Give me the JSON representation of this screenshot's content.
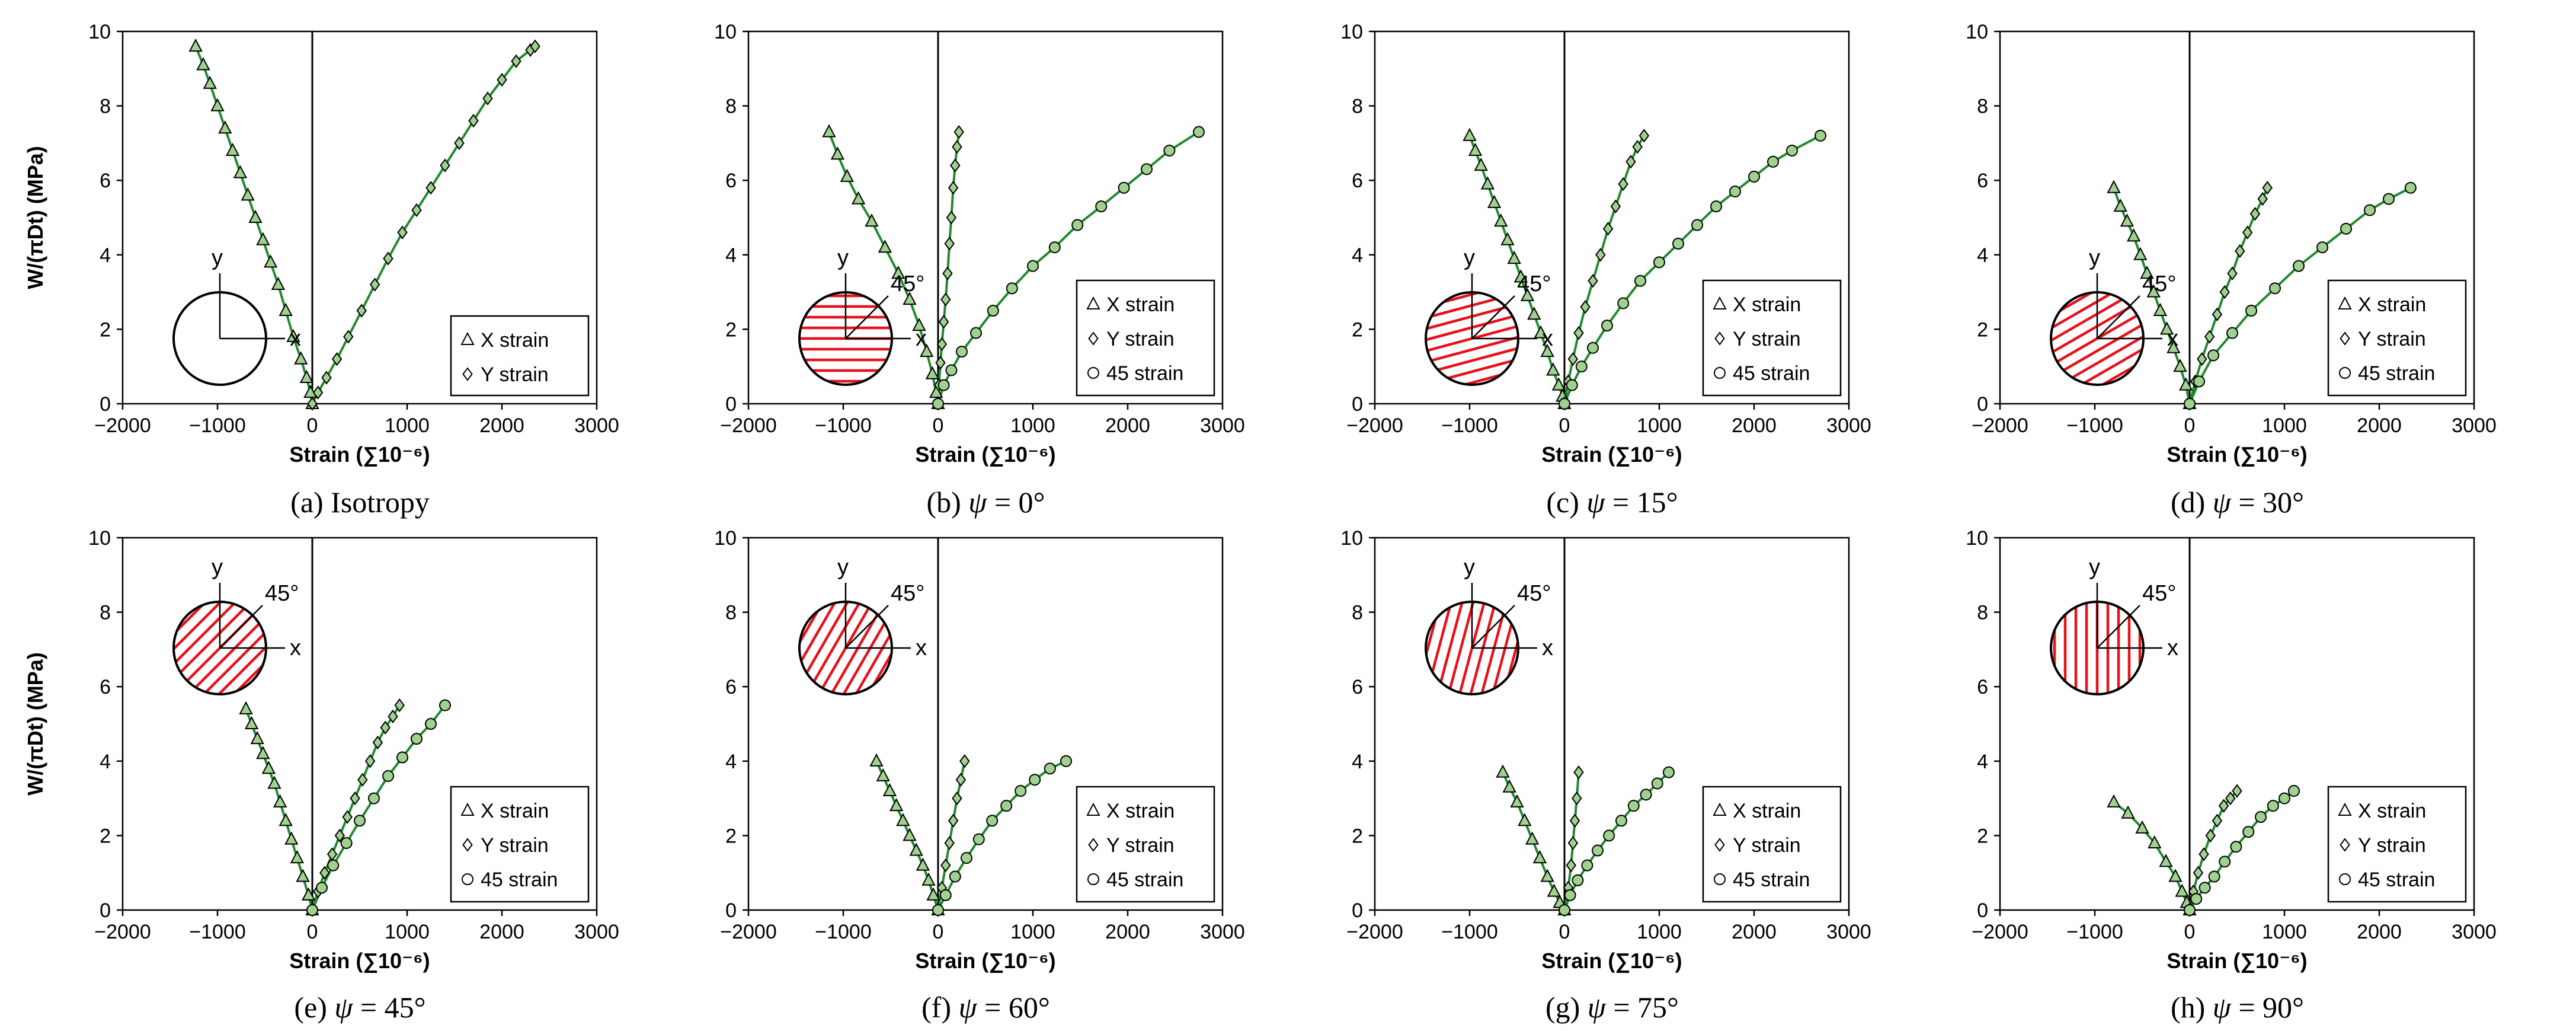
{
  "figure": {
    "y_axis_title": "W/(πDt) (MPa)",
    "x_axis_title": "Strain (∑10⁻⁶)",
    "x_ticks": [
      -2000,
      -1000,
      0,
      1000,
      2000,
      3000
    ],
    "y_ticks": [
      0,
      2,
      4,
      6,
      8,
      10
    ],
    "diagram_labels": {
      "x": "x",
      "y": "y",
      "angle": "45°"
    },
    "legend_labels": {
      "x": "X strain",
      "y": "Y strain",
      "d": "45 strain"
    },
    "colors": {
      "fit_line": "#1f8a2e",
      "marker_fill": "#9fd18f",
      "hatch": "#e8101a",
      "axis": "#000000"
    }
  },
  "chart_data": [
    {
      "type": "scatter",
      "id": "a",
      "caption_prefix": "(a) Isotropy",
      "psi": null,
      "psi_label": "",
      "psi_value": "",
      "xlim": [
        -2000,
        3000
      ],
      "ylim": [
        0,
        10
      ],
      "xlabel": "Strain (∑10⁻⁶)",
      "ylabel": "W/(πDt) (MPa)",
      "hatch_angle": null,
      "legend_entries": [
        "X strain",
        "Y strain"
      ],
      "series": [
        {
          "name": "X strain",
          "marker": "triangle",
          "x": [
            -1230,
            -1150,
            -1080,
            -1000,
            -920,
            -840,
            -760,
            -680,
            -600,
            -520,
            -440,
            -360,
            -280,
            -200,
            -120,
            -60,
            -20,
            0
          ],
          "y": [
            9.6,
            9.1,
            8.6,
            8.0,
            7.4,
            6.8,
            6.2,
            5.6,
            5.0,
            4.4,
            3.8,
            3.2,
            2.5,
            1.8,
            1.2,
            0.7,
            0.3,
            0
          ]
        },
        {
          "name": "Y strain",
          "marker": "diamond",
          "x": [
            0,
            60,
            150,
            260,
            380,
            520,
            660,
            800,
            950,
            1100,
            1250,
            1400,
            1550,
            1700,
            1850,
            2000,
            2150,
            2300,
            2350
          ],
          "y": [
            0,
            0.3,
            0.7,
            1.2,
            1.8,
            2.5,
            3.2,
            3.9,
            4.6,
            5.2,
            5.8,
            6.4,
            7.0,
            7.6,
            8.2,
            8.7,
            9.2,
            9.5,
            9.6
          ]
        }
      ]
    },
    {
      "type": "scatter",
      "id": "b",
      "caption_prefix": "(b) ",
      "psi": 0,
      "psi_label": "ψ",
      "psi_value": " = 0°",
      "xlim": [
        -2000,
        3000
      ],
      "ylim": [
        0,
        10
      ],
      "xlabel": "Strain (∑10⁻⁶)",
      "ylabel": "W/(πDt) (MPa)",
      "hatch_angle": 0,
      "legend_entries": [
        "X strain",
        "Y strain",
        "45 strain"
      ],
      "series": [
        {
          "name": "X strain",
          "marker": "triangle",
          "x": [
            -1150,
            -1060,
            -960,
            -840,
            -700,
            -560,
            -420,
            -300,
            -200,
            -120,
            -60,
            -20,
            0
          ],
          "y": [
            7.3,
            6.7,
            6.1,
            5.5,
            4.9,
            4.2,
            3.5,
            2.8,
            2.1,
            1.4,
            0.8,
            0.3,
            0
          ]
        },
        {
          "name": "Y strain",
          "marker": "diamond",
          "x": [
            0,
            10,
            25,
            40,
            60,
            80,
            100,
            120,
            140,
            160,
            180,
            200,
            220
          ],
          "y": [
            0,
            0.5,
            1.1,
            1.6,
            2.2,
            2.8,
            3.5,
            4.3,
            5.0,
            5.8,
            6.4,
            6.9,
            7.3
          ]
        },
        {
          "name": "45 strain",
          "marker": "circle",
          "x": [
            0,
            60,
            140,
            250,
            400,
            580,
            780,
            1000,
            1230,
            1470,
            1720,
            1960,
            2200,
            2440,
            2750
          ],
          "y": [
            0,
            0.5,
            0.9,
            1.4,
            1.9,
            2.5,
            3.1,
            3.7,
            4.2,
            4.8,
            5.3,
            5.8,
            6.3,
            6.8,
            7.3
          ]
        }
      ]
    },
    {
      "type": "scatter",
      "id": "c",
      "caption_prefix": "(c) ",
      "psi": 15,
      "psi_label": "ψ",
      "psi_value": " = 15°",
      "xlim": [
        -2000,
        3000
      ],
      "ylim": [
        0,
        10
      ],
      "xlabel": "Strain (∑10⁻⁶)",
      "ylabel": "W/(πDt) (MPa)",
      "hatch_angle": 15,
      "legend_entries": [
        "X strain",
        "Y strain",
        "45 strain"
      ],
      "series": [
        {
          "name": "X strain",
          "marker": "triangle",
          "x": [
            -1000,
            -940,
            -880,
            -810,
            -740,
            -670,
            -600,
            -530,
            -460,
            -390,
            -320,
            -250,
            -180,
            -120,
            -60,
            -20,
            0
          ],
          "y": [
            7.2,
            6.8,
            6.4,
            5.9,
            5.4,
            4.9,
            4.4,
            3.9,
            3.4,
            2.9,
            2.4,
            1.9,
            1.4,
            0.9,
            0.5,
            0.2,
            0
          ]
        },
        {
          "name": "Y strain",
          "marker": "diamond",
          "x": [
            0,
            40,
            90,
            150,
            220,
            300,
            380,
            460,
            540,
            620,
            700,
            770,
            840
          ],
          "y": [
            0,
            0.6,
            1.2,
            1.9,
            2.6,
            3.3,
            4.0,
            4.7,
            5.3,
            5.9,
            6.5,
            6.9,
            7.2
          ]
        },
        {
          "name": "45 strain",
          "marker": "circle",
          "x": [
            0,
            80,
            180,
            300,
            450,
            620,
            800,
            1000,
            1200,
            1400,
            1600,
            1800,
            2000,
            2200,
            2400,
            2700
          ],
          "y": [
            0,
            0.5,
            1.0,
            1.5,
            2.1,
            2.7,
            3.3,
            3.8,
            4.3,
            4.8,
            5.3,
            5.7,
            6.1,
            6.5,
            6.8,
            7.2
          ]
        }
      ]
    },
    {
      "type": "scatter",
      "id": "d",
      "caption_prefix": "(d) ",
      "psi": 30,
      "psi_label": "ψ",
      "psi_value": " = 30°",
      "xlim": [
        -2000,
        3000
      ],
      "ylim": [
        0,
        10
      ],
      "xlabel": "Strain (∑10⁻⁶)",
      "ylabel": "W/(πDt) (MPa)",
      "hatch_angle": 30,
      "legend_entries": [
        "X strain",
        "Y strain",
        "45 strain"
      ],
      "series": [
        {
          "name": "X strain",
          "marker": "triangle",
          "x": [
            -800,
            -730,
            -660,
            -590,
            -520,
            -450,
            -380,
            -310,
            -240,
            -170,
            -100,
            -40,
            0
          ],
          "y": [
            5.8,
            5.3,
            4.9,
            4.5,
            4.0,
            3.5,
            3.0,
            2.5,
            2.0,
            1.5,
            1.0,
            0.5,
            0
          ]
        },
        {
          "name": "Y strain",
          "marker": "diamond",
          "x": [
            0,
            60,
            130,
            210,
            290,
            370,
            450,
            530,
            610,
            690,
            770,
            820
          ],
          "y": [
            0,
            0.6,
            1.2,
            1.8,
            2.4,
            3.0,
            3.5,
            4.1,
            4.6,
            5.1,
            5.5,
            5.8
          ]
        },
        {
          "name": "45 strain",
          "marker": "circle",
          "x": [
            0,
            100,
            250,
            450,
            650,
            900,
            1150,
            1400,
            1650,
            1900,
            2100,
            2330
          ],
          "y": [
            0,
            0.6,
            1.3,
            1.9,
            2.5,
            3.1,
            3.7,
            4.2,
            4.7,
            5.2,
            5.5,
            5.8
          ]
        }
      ]
    },
    {
      "type": "scatter",
      "id": "e",
      "caption_prefix": "(e) ",
      "psi": 45,
      "psi_label": "ψ",
      "psi_value": " = 45°",
      "xlim": [
        -2000,
        3000
      ],
      "ylim": [
        0,
        10
      ],
      "xlabel": "Strain (∑10⁻⁶)",
      "ylabel": "W/(πDt) (MPa)",
      "hatch_angle": 45,
      "legend_entries": [
        "X strain",
        "Y strain",
        "45 strain"
      ],
      "series": [
        {
          "name": "X strain",
          "marker": "triangle",
          "x": [
            -700,
            -640,
            -580,
            -520,
            -460,
            -400,
            -340,
            -280,
            -220,
            -160,
            -100,
            -40,
            0
          ],
          "y": [
            5.4,
            5.0,
            4.6,
            4.2,
            3.8,
            3.4,
            2.9,
            2.4,
            1.9,
            1.4,
            0.9,
            0.4,
            0
          ]
        },
        {
          "name": "Y strain",
          "marker": "diamond",
          "x": [
            0,
            60,
            130,
            210,
            290,
            370,
            450,
            530,
            610,
            690,
            770,
            850,
            920
          ],
          "y": [
            0,
            0.5,
            1.0,
            1.5,
            2.0,
            2.5,
            3.0,
            3.5,
            4.0,
            4.5,
            4.9,
            5.2,
            5.5
          ]
        },
        {
          "name": "45 strain",
          "marker": "circle",
          "x": [
            0,
            100,
            220,
            360,
            500,
            650,
            800,
            950,
            1100,
            1250,
            1400
          ],
          "y": [
            0,
            0.6,
            1.2,
            1.8,
            2.4,
            3.0,
            3.6,
            4.1,
            4.6,
            5.0,
            5.5
          ]
        }
      ]
    },
    {
      "type": "scatter",
      "id": "f",
      "caption_prefix": "(f) ",
      "psi": 60,
      "psi_label": "ψ",
      "psi_value": " = 60°",
      "xlim": [
        -2000,
        3000
      ],
      "ylim": [
        0,
        10
      ],
      "xlabel": "Strain (∑10⁻⁶)",
      "ylabel": "W/(πDt) (MPa)",
      "hatch_angle": 60,
      "legend_entries": [
        "X strain",
        "Y strain",
        "45 strain"
      ],
      "series": [
        {
          "name": "X strain",
          "marker": "triangle",
          "x": [
            -650,
            -580,
            -510,
            -440,
            -370,
            -300,
            -230,
            -160,
            -100,
            -50,
            0
          ],
          "y": [
            4.0,
            3.6,
            3.2,
            2.8,
            2.4,
            2.0,
            1.6,
            1.2,
            0.8,
            0.4,
            0
          ]
        },
        {
          "name": "Y strain",
          "marker": "diamond",
          "x": [
            0,
            40,
            80,
            120,
            160,
            200,
            240,
            280
          ],
          "y": [
            0,
            0.6,
            1.2,
            1.8,
            2.4,
            3.0,
            3.5,
            4.0
          ]
        },
        {
          "name": "45 strain",
          "marker": "circle",
          "x": [
            0,
            80,
            180,
            300,
            430,
            570,
            720,
            870,
            1020,
            1180,
            1350
          ],
          "y": [
            0,
            0.4,
            0.9,
            1.4,
            1.9,
            2.4,
            2.8,
            3.2,
            3.5,
            3.8,
            4.0
          ]
        }
      ]
    },
    {
      "type": "scatter",
      "id": "g",
      "caption_prefix": "(g) ",
      "psi": 75,
      "psi_label": "ψ",
      "psi_value": " = 75°",
      "xlim": [
        -2000,
        3000
      ],
      "ylim": [
        0,
        10
      ],
      "xlabel": "Strain (∑10⁻⁶)",
      "ylabel": "W/(πDt) (MPa)",
      "hatch_angle": 75,
      "legend_entries": [
        "X strain",
        "Y strain",
        "45 strain"
      ],
      "series": [
        {
          "name": "X strain",
          "marker": "triangle",
          "x": [
            -650,
            -580,
            -500,
            -420,
            -340,
            -260,
            -180,
            -110,
            -50,
            0
          ],
          "y": [
            3.7,
            3.3,
            2.9,
            2.4,
            1.9,
            1.4,
            0.9,
            0.5,
            0.2,
            0
          ]
        },
        {
          "name": "Y strain",
          "marker": "diamond",
          "x": [
            0,
            40,
            70,
            90,
            110,
            130,
            150
          ],
          "y": [
            0,
            0.6,
            1.2,
            1.8,
            2.4,
            3.0,
            3.7
          ]
        },
        {
          "name": "45 strain",
          "marker": "circle",
          "x": [
            0,
            60,
            140,
            240,
            350,
            470,
            600,
            730,
            860,
            980,
            1100
          ],
          "y": [
            0,
            0.4,
            0.8,
            1.2,
            1.6,
            2.0,
            2.4,
            2.8,
            3.1,
            3.4,
            3.7
          ]
        }
      ]
    },
    {
      "type": "scatter",
      "id": "h",
      "caption_prefix": "(h) ",
      "psi": 90,
      "psi_label": "ψ",
      "psi_value": " = 90°",
      "xlim": [
        -2000,
        3000
      ],
      "ylim": [
        0,
        10
      ],
      "xlabel": "Strain (∑10⁻⁶)",
      "ylabel": "W/(πDt) (MPa)",
      "hatch_angle": 90,
      "legend_entries": [
        "X strain",
        "Y strain",
        "45 strain"
      ],
      "series": [
        {
          "name": "X strain",
          "marker": "triangle",
          "x": [
            -800,
            -650,
            -500,
            -370,
            -250,
            -150,
            -80,
            -30,
            0
          ],
          "y": [
            2.9,
            2.6,
            2.2,
            1.8,
            1.3,
            0.9,
            0.5,
            0.2,
            0
          ]
        },
        {
          "name": "Y strain",
          "marker": "diamond",
          "x": [
            0,
            40,
            90,
            150,
            220,
            290,
            360,
            430,
            500
          ],
          "y": [
            0,
            0.5,
            1.0,
            1.5,
            2.0,
            2.4,
            2.8,
            3.0,
            3.2
          ]
        },
        {
          "name": "45 strain",
          "marker": "circle",
          "x": [
            0,
            70,
            160,
            260,
            370,
            490,
            620,
            750,
            880,
            1000,
            1100
          ],
          "y": [
            0,
            0.3,
            0.6,
            0.9,
            1.3,
            1.7,
            2.1,
            2.5,
            2.8,
            3.0,
            3.2
          ]
        }
      ]
    }
  ]
}
